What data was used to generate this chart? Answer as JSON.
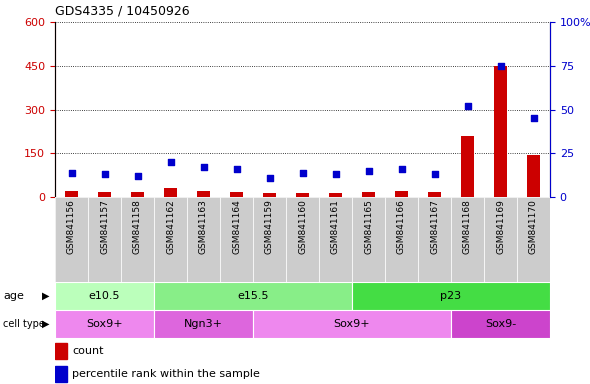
{
  "title": "GDS4335 / 10450926",
  "samples": [
    "GSM841156",
    "GSM841157",
    "GSM841158",
    "GSM841162",
    "GSM841163",
    "GSM841164",
    "GSM841159",
    "GSM841160",
    "GSM841161",
    "GSM841165",
    "GSM841166",
    "GSM841167",
    "GSM841168",
    "GSM841169",
    "GSM841170"
  ],
  "counts": [
    20,
    18,
    16,
    30,
    22,
    18,
    15,
    14,
    14,
    18,
    20,
    18,
    210,
    450,
    145
  ],
  "percentiles": [
    14,
    13,
    12,
    20,
    17,
    16,
    11,
    14,
    13,
    15,
    16,
    13,
    52,
    75,
    45
  ],
  "age_groups": [
    {
      "label": "e10.5",
      "start": 0,
      "end": 3,
      "color": "#bbffbb"
    },
    {
      "label": "e15.5",
      "start": 3,
      "end": 9,
      "color": "#88ee88"
    },
    {
      "label": "p23",
      "start": 9,
      "end": 15,
      "color": "#44dd44"
    }
  ],
  "cell_type_groups": [
    {
      "label": "Sox9+",
      "start": 0,
      "end": 3,
      "color": "#ee88ee"
    },
    {
      "label": "Ngn3+",
      "start": 3,
      "end": 6,
      "color": "#dd66dd"
    },
    {
      "label": "Sox9+",
      "start": 6,
      "end": 12,
      "color": "#ee88ee"
    },
    {
      "label": "Sox9-",
      "start": 12,
      "end": 15,
      "color": "#cc44cc"
    }
  ],
  "ylim_left": [
    0,
    600
  ],
  "ylim_right": [
    0,
    100
  ],
  "yticks_left": [
    0,
    150,
    300,
    450,
    600
  ],
  "yticks_right": [
    0,
    25,
    50,
    75,
    100
  ],
  "bar_color": "#cc0000",
  "dot_color": "#0000cc",
  "xlabel_bg": "#cccccc",
  "legend_count_color": "#cc0000",
  "legend_pct_color": "#0000cc",
  "bar_width": 0.4
}
